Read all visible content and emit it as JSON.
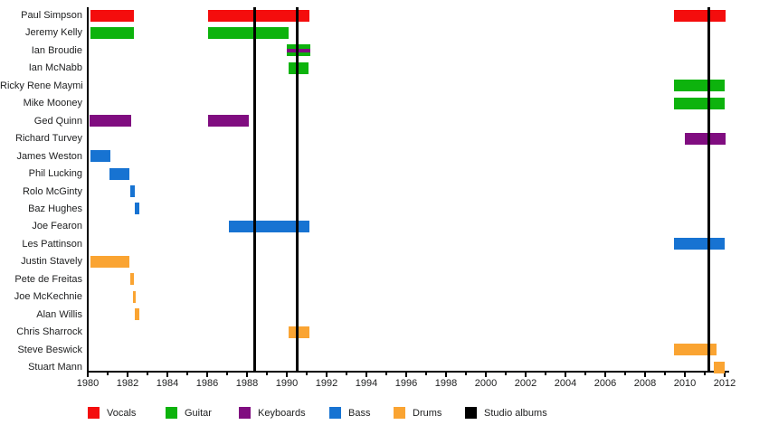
{
  "chart_data": {
    "type": "timeline",
    "title": "",
    "x_axis": {
      "min": 1980,
      "max": 2012.3,
      "major_tick_step": 2,
      "minor_tick_step": 1,
      "tick_labels": [
        "1980",
        "1982",
        "1984",
        "1986",
        "1988",
        "1990",
        "1992",
        "1994",
        "1996",
        "1998",
        "2000",
        "2002",
        "2004",
        "2006",
        "2008",
        "2010",
        "2012"
      ]
    },
    "colors": {
      "vocals": "#f40d0d",
      "guitar": "#0db30d",
      "keyboards": "#800d80",
      "bass": "#1773d2",
      "drums": "#faa432",
      "albums": "#000000"
    },
    "members": [
      {
        "name": "Paul Simpson",
        "role": "vocals",
        "bars": [
          [
            1980.15,
            1982.3
          ],
          [
            1986.05,
            1991.15
          ],
          [
            2009.45,
            2012.05
          ]
        ]
      },
      {
        "name": "Jeremy Kelly",
        "role": "guitar",
        "bars": [
          [
            1980.15,
            1982.3
          ],
          [
            1986.05,
            1990.1
          ]
        ]
      },
      {
        "name": "Ian Broudie",
        "role": "guitar",
        "stripe_role": "keyboards",
        "bars": [
          [
            1990.0,
            1991.2
          ]
        ]
      },
      {
        "name": "Ian McNabb",
        "role": "guitar",
        "bars": [
          [
            1990.1,
            1991.1
          ]
        ]
      },
      {
        "name": "Ricky Rene Maymi",
        "role": "guitar",
        "bars": [
          [
            2009.45,
            2012.0
          ]
        ]
      },
      {
        "name": "Mike Mooney",
        "role": "guitar",
        "bars": [
          [
            2009.45,
            2012.0
          ]
        ]
      },
      {
        "name": "Ged Quinn",
        "role": "keyboards",
        "bars": [
          [
            1980.1,
            1982.2
          ],
          [
            1986.05,
            1988.1
          ]
        ]
      },
      {
        "name": "Richard Turvey",
        "role": "keyboards",
        "bars": [
          [
            2010.0,
            2012.05
          ]
        ]
      },
      {
        "name": "James Weston",
        "role": "bass",
        "bars": [
          [
            1980.15,
            1981.15
          ]
        ]
      },
      {
        "name": "Phil Lucking",
        "role": "bass",
        "bars": [
          [
            1981.1,
            1982.1
          ]
        ]
      },
      {
        "name": "Rolo McGinty",
        "role": "bass",
        "bars": [
          [
            1982.15,
            1982.38
          ]
        ]
      },
      {
        "name": "Baz Hughes",
        "role": "bass",
        "bars": [
          [
            1982.38,
            1982.6
          ]
        ]
      },
      {
        "name": "Joe Fearon",
        "role": "bass",
        "bars": [
          [
            1987.1,
            1991.15
          ]
        ]
      },
      {
        "name": "Les Pattinson",
        "role": "bass",
        "bars": [
          [
            2009.45,
            2012.0
          ]
        ]
      },
      {
        "name": "Justin Stavely",
        "role": "drums",
        "bars": [
          [
            1980.15,
            1982.1
          ]
        ]
      },
      {
        "name": "Pete de Freitas",
        "role": "drums",
        "bars": [
          [
            1982.15,
            1982.3
          ]
        ]
      },
      {
        "name": "Joe McKechnie",
        "role": "drums",
        "bars": [
          [
            1982.26,
            1982.4
          ]
        ]
      },
      {
        "name": "Alan Willis",
        "role": "drums",
        "bars": [
          [
            1982.38,
            1982.6
          ]
        ]
      },
      {
        "name": "Chris Sharrock",
        "role": "drums",
        "bars": [
          [
            1990.1,
            1991.15
          ]
        ]
      },
      {
        "name": "Steve Beswick",
        "role": "drums",
        "bars": [
          [
            2009.45,
            2011.6
          ]
        ]
      },
      {
        "name": "Stuart Mann",
        "role": "drums",
        "bars": [
          [
            2011.45,
            2012.0
          ]
        ]
      }
    ],
    "album_release_years": [
      1988.4,
      1990.5,
      2011.2
    ],
    "legend": [
      {
        "label": "Vocals",
        "role": "vocals"
      },
      {
        "label": "Guitar",
        "role": "guitar"
      },
      {
        "label": "Keyboards",
        "role": "keyboards"
      },
      {
        "label": "Bass",
        "role": "bass"
      },
      {
        "label": "Drums",
        "role": "drums"
      },
      {
        "label": "Studio albums",
        "role": "albums"
      }
    ]
  }
}
